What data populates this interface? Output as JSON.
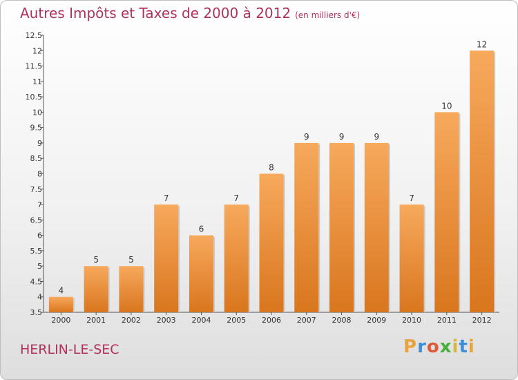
{
  "title": "Autres Impôts et Taxes de 2000 à 2012",
  "unit_note": "(en milliers d'€)",
  "commune": "HERLIN-LE-SEC",
  "logo": {
    "letters": [
      "P",
      "r",
      "o",
      "x",
      "i",
      "t",
      "i"
    ],
    "colors": [
      "#e8a33c",
      "#3c8fd6",
      "#e05a3a",
      "#4aae3c",
      "#d6b83c",
      "#3c8fd6",
      "#e8a33c"
    ]
  },
  "colors": {
    "bar_light": "#f7a95c",
    "bar_dark": "#d9761e",
    "title": "#b0325a"
  },
  "chart_data": {
    "type": "bar",
    "title": "Autres Impôts et Taxes de 2000 à 2012",
    "categories": [
      "2000",
      "2001",
      "2002",
      "2003",
      "2004",
      "2005",
      "2006",
      "2007",
      "2008",
      "2009",
      "2010",
      "2011",
      "2012"
    ],
    "values": [
      4,
      5,
      5,
      7,
      6,
      7,
      8,
      9,
      9,
      9,
      7,
      10,
      12
    ],
    "value_labels": [
      "4",
      "5",
      "5",
      "7",
      "6",
      "7",
      "8",
      "9",
      "9",
      "9",
      "7",
      "10",
      "12"
    ],
    "ylim": [
      3.5,
      12.5
    ],
    "yticks": [
      "3.5",
      "4",
      "4.5",
      "5",
      "5.5",
      "6",
      "6.5",
      "7",
      "7.5",
      "8",
      "8.5",
      "9",
      "9.5",
      "10",
      "10.5",
      "11",
      "11.5",
      "12",
      "12.5"
    ],
    "grid": false
  }
}
